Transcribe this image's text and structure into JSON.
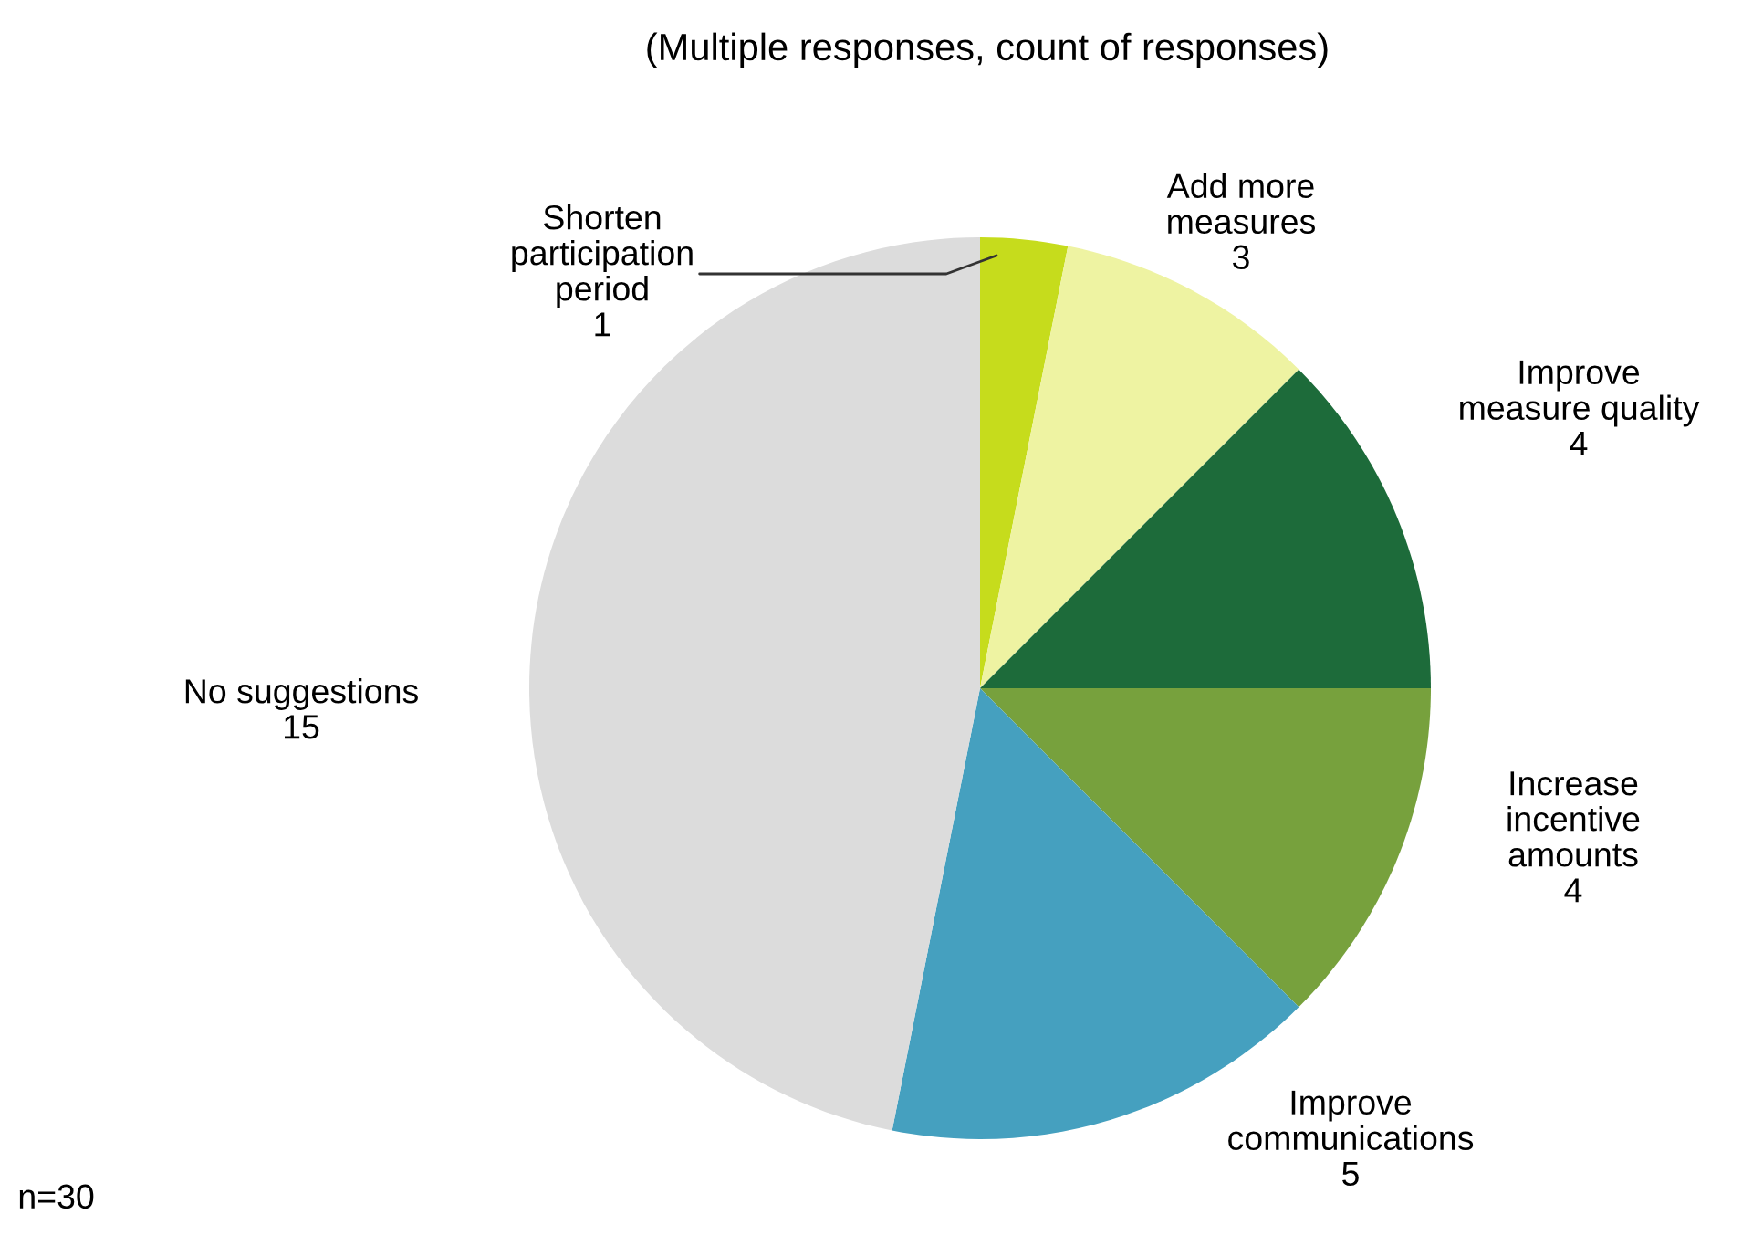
{
  "chart_data": {
    "type": "pie",
    "title": "(Multiple responses, count of responses)",
    "categories": [
      "Shorten\nparticipation\nperiod",
      "Add more\nmeasures",
      "Improve\nmeasure quality",
      "Increase\nincentive\namounts",
      "Improve\ncommunications",
      "No suggestions"
    ],
    "values": [
      1,
      3,
      4,
      4,
      5,
      15
    ],
    "colors": [
      "#c6dc1c",
      "#eef3a2",
      "#1d6b3a",
      "#77a13d",
      "#45a0bf",
      "#dcdcdc"
    ],
    "data_labels": true,
    "legend": false,
    "annotations": [
      "n=30"
    ]
  }
}
